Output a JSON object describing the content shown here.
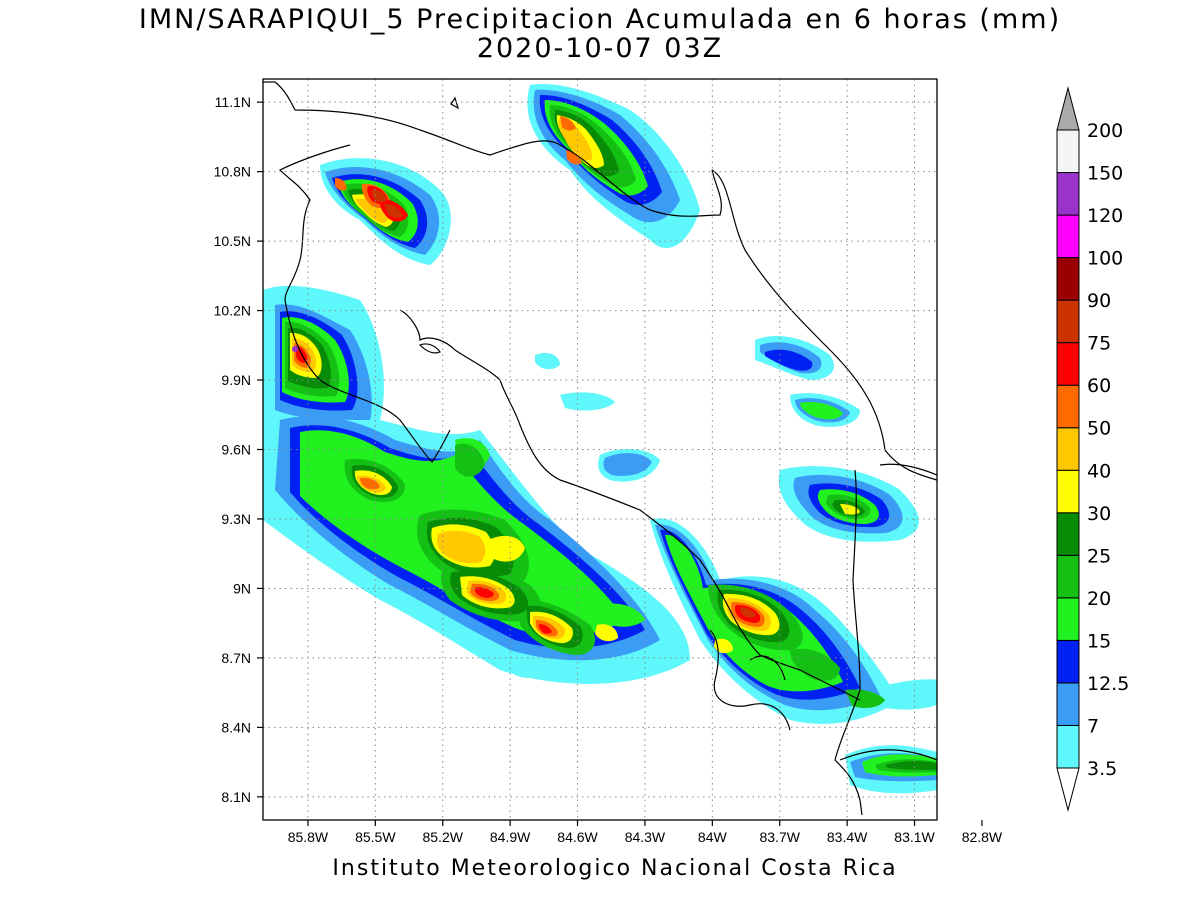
{
  "map": {
    "title": "IMN/SARAPIQUI_5 Precipitacion Acumulada en 6 horas (mm)",
    "subtitle": "2020-10-07 03Z",
    "footer": "Instituto Meteorologico Nacional Costa Rica",
    "lon_range": [
      -86.0,
      -83.0
    ],
    "lat_range": [
      8.0,
      11.2
    ],
    "lon_ticks": [
      {
        "value": -85.8,
        "label": "85.8W"
      },
      {
        "value": -85.5,
        "label": "85.5W"
      },
      {
        "value": -85.2,
        "label": "85.2W"
      },
      {
        "value": -84.9,
        "label": "84.9W"
      },
      {
        "value": -84.6,
        "label": "84.6W"
      },
      {
        "value": -84.3,
        "label": "84.3W"
      },
      {
        "value": -84.0,
        "label": "84W"
      },
      {
        "value": -83.7,
        "label": "83.7W"
      },
      {
        "value": -83.4,
        "label": "83.4W"
      },
      {
        "value": -83.1,
        "label": "83.1W"
      },
      {
        "value": -82.8,
        "label": "82.8W"
      }
    ],
    "lat_ticks": [
      {
        "value": 11.1,
        "label": "11.1N"
      },
      {
        "value": 10.8,
        "label": "10.8N"
      },
      {
        "value": 10.5,
        "label": "10.5N"
      },
      {
        "value": 10.2,
        "label": "10.2N"
      },
      {
        "value": 9.9,
        "label": "9.9N"
      },
      {
        "value": 9.6,
        "label": "9.6N"
      },
      {
        "value": 9.3,
        "label": "9.3N"
      },
      {
        "value": 9.0,
        "label": "9N"
      },
      {
        "value": 8.7,
        "label": "8.7N"
      },
      {
        "value": 8.4,
        "label": "8.4N"
      },
      {
        "value": 8.1,
        "label": "8.1N"
      }
    ],
    "grid": true
  },
  "legend": {
    "placement": "right",
    "bins": [
      {
        "label": "3.5",
        "color": "#5ef7fb"
      },
      {
        "label": "7",
        "color": "#3b9cf6"
      },
      {
        "label": "12.5",
        "color": "#0021f2"
      },
      {
        "label": "15",
        "color": "#22f120"
      },
      {
        "label": "20",
        "color": "#15c015"
      },
      {
        "label": "25",
        "color": "#088c08"
      },
      {
        "label": "30",
        "color": "#fffe00"
      },
      {
        "label": "40",
        "color": "#ffc800"
      },
      {
        "label": "50",
        "color": "#ff6b00"
      },
      {
        "label": "60",
        "color": "#ff0000"
      },
      {
        "label": "75",
        "color": "#cd3300"
      },
      {
        "label": "90",
        "color": "#990000"
      },
      {
        "label": "100",
        "color": "#ff00ff"
      },
      {
        "label": "120",
        "color": "#9933cc"
      },
      {
        "label": "150",
        "color": "#f5f5f5"
      },
      {
        "label": "200",
        "color": "#aaaaaa"
      }
    ],
    "under_color": "#ffffff",
    "over_color": "#aaaaaa"
  }
}
